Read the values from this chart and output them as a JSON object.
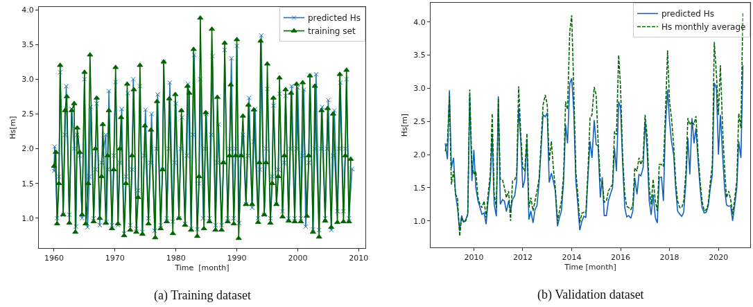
{
  "chart_data": [
    {
      "type": "line",
      "xlabel": "Time  [month]",
      "ylabel": "Hs[m]",
      "annotations": [
        "(a) Training dataset"
      ],
      "xlim": [
        1957.5,
        2011.1
      ],
      "xticks": [
        1960,
        1970,
        1980,
        1990,
        2000,
        2010
      ],
      "ylim": [
        0.57,
        4.04
      ],
      "yticks": [
        {
          "value": 1,
          "label": "1.0"
        },
        1.5,
        {
          "value": 2,
          "label": "2.0"
        },
        2.5,
        {
          "value": 3,
          "label": "3.0"
        },
        3.5,
        {
          "value": 4,
          "label": "4.0"
        }
      ],
      "grid": false,
      "legend": "top right",
      "series": [
        {
          "name": "predicted Hs",
          "color": "#1f77b4",
          "marker": "cross",
          "x": [
            1960.0,
            1960.1,
            1960.5,
            1960.8,
            1961.0,
            1961.5,
            1961.8,
            1962.0,
            1962.5,
            1962.9,
            1963.3,
            1963.6,
            1963.8,
            1964.2,
            1964.6,
            1965.0,
            1965.5,
            1965.8,
            1966.0,
            1966.5,
            1966.8,
            1967.0,
            1967.5,
            1967.8,
            1968.5,
            1968.6,
            1968.8,
            1969.0,
            1969.5,
            1969.8,
            1970.1,
            1970.5,
            1970.8,
            1971.1,
            1971.5,
            1971.8,
            1972.1,
            1972.5,
            1972.8,
            1973.0,
            1973.5,
            1973.8,
            1974.1,
            1974.5,
            1974.8,
            1975.0,
            1975.5,
            1975.8,
            1976.0,
            1976.5,
            1976.8,
            1977.0,
            1977.5,
            1977.8,
            1978.0,
            1978.5,
            1978.8,
            1979.0,
            1979.5,
            1979.8,
            1980.0,
            1980.5,
            1980.8,
            1981.0,
            1981.5,
            1981.8,
            1982.0,
            1982.5,
            1982.8,
            1983.0,
            1983.5,
            1983.8,
            1984.0,
            1984.5,
            1984.8,
            1985.0,
            1985.5,
            1985.8,
            1986.0,
            1986.5,
            1986.8,
            1987.0,
            1987.5,
            1987.8,
            1988.0,
            1988.5,
            1988.8,
            1989.1,
            1989.5,
            1989.8,
            1990.0,
            1990.4,
            1990.7,
            1991.0,
            1991.5,
            1991.8,
            1992.0,
            1992.5,
            1992.8,
            1993.0,
            1993.5,
            1993.8,
            1994.0,
            1994.5,
            1994.8,
            1995.0,
            1995.5,
            1995.8,
            1996.0,
            1996.5,
            1996.8,
            1997.0,
            1997.5,
            1997.8,
            1998.0,
            1998.5,
            1998.8,
            1999.0,
            1999.5,
            1999.8,
            2000.0,
            2000.5,
            2000.8,
            2001.0,
            2001.3,
            2001.8,
            2002.0,
            2002.5,
            2002.8,
            2003.0,
            2003.5,
            2003.8,
            2004.0,
            2004.5,
            2004.8,
            2005.0,
            2005.5,
            2005.8,
            2006.0,
            2006.5,
            2006.8,
            2007.0,
            2007.5,
            2007.8,
            2008.0,
            2008.4,
            2008.9
          ],
          "values": [
            1.68,
            2.03,
            1.0,
            1.6,
            3.1,
            1.05,
            2.2,
            2.9,
            1.05,
            2.57,
            2.0,
            0.88,
            2.2,
            1.9,
            1.0,
            3.0,
            0.87,
            1.6,
            2.6,
            1.0,
            1.7,
            2.65,
            0.9,
            1.8,
            2.2,
            0.95,
            1.7,
            2.83,
            0.9,
            1.9,
            2.96,
            0.9,
            1.8,
            2.57,
            0.78,
            1.6,
            2.8,
            0.9,
            1.7,
            3.0,
            0.85,
            1.4,
            2.9,
            0.8,
            1.9,
            2.56,
            1.0,
            1.8,
            2.5,
            0.82,
            2.0,
            2.78,
            0.9,
            1.7,
            3.25,
            1.0,
            2.0,
            2.95,
            0.95,
            1.8,
            2.65,
            1.0,
            2.0,
            2.45,
            0.92,
            1.9,
            2.93,
            0.85,
            2.2,
            3.35,
            0.84,
            1.5,
            3.0,
            1.0,
            2.0,
            2.5,
            1.0,
            2.2,
            3.33,
            0.9,
            1.8,
            2.35,
            0.9,
            1.8,
            3.42,
            1.0,
            2.0,
            3.3,
            1.0,
            2.0,
            3.48,
            0.93,
            1.9,
            2.2,
            1.2,
            1.9,
            2.73,
            1.15,
            2.1,
            2.57,
            1.0,
            1.7,
            3.63,
            1.05,
            2.0,
            2.86,
            1.0,
            1.6,
            2.62,
            1.2,
            1.7,
            2.79,
            1.1,
            1.8,
            2.76,
            1.0,
            2.0,
            2.9,
            1.0,
            2.0,
            2.88,
            1.0,
            1.9,
            2.85,
            0.88,
            1.8,
            3.05,
            0.84,
            2.0,
            3.07,
            0.83,
            2.0,
            2.6,
            1.0,
            2.0,
            2.7,
            0.83,
            1.9,
            2.55,
            1.1,
            2.0,
            2.95,
            1.1,
            2.0,
            3.0,
            1.0,
            1.71
          ]
        },
        {
          "name": "training set",
          "color": "#006400",
          "marker": "triangle",
          "x": [
            1960.0,
            1960.3,
            1960.5,
            1960.8,
            1961.0,
            1961.5,
            1961.8,
            1962.1,
            1962.5,
            1962.9,
            1963.3,
            1963.5,
            1963.8,
            1964.2,
            1964.6,
            1965.0,
            1965.2,
            1965.6,
            1965.9,
            1966.5,
            1966.8,
            1967.0,
            1967.5,
            1967.8,
            1968.0,
            1968.5,
            1968.8,
            1969.0,
            1969.5,
            1969.8,
            1970.1,
            1970.5,
            1970.8,
            1971.0,
            1971.5,
            1971.8,
            1972.0,
            1972.5,
            1972.8,
            1973.1,
            1973.5,
            1973.8,
            1974.1,
            1974.5,
            1974.9,
            1975.5,
            1975.9,
            1976.6,
            1976.9,
            1977.5,
            1977.8,
            1978.0,
            1978.5,
            1978.9,
            1979.5,
            1979.9,
            1980.5,
            1980.9,
            1981.5,
            1981.9,
            1982.2,
            1982.5,
            1982.9,
            1983.5,
            1983.8,
            1984.0,
            1984.6,
            1984.9,
            1985.5,
            1985.9,
            1986.5,
            1986.8,
            1987.5,
            1987.8,
            1988.0,
            1988.5,
            1988.8,
            1989.0,
            1989.5,
            1989.8,
            1990.0,
            1990.3,
            1990.7,
            1991.0,
            1991.5,
            1991.9,
            1992.5,
            1992.8,
            1993.5,
            1993.7,
            1993.9,
            1994.5,
            1994.8,
            1995.0,
            1995.5,
            1995.8,
            1996.0,
            1996.5,
            1996.8,
            1997.0,
            1997.5,
            1997.8,
            1998.0,
            1998.5,
            1998.9,
            1999.5,
            1999.8,
            2000.5,
            2000.8,
            2001.5,
            2001.8,
            2002.0,
            2002.5,
            2002.8,
            2003.5,
            2003.9,
            2004.5,
            2004.9,
            2005.5,
            2005.8,
            2006.5,
            2006.9,
            2007.5,
            2007.8,
            2008.0,
            2008.4,
            2008.7
          ],
          "values": [
            1.75,
            1.95,
            0.92,
            1.5,
            3.2,
            1.05,
            2.55,
            2.75,
            0.93,
            2.55,
            2.65,
            0.8,
            2.3,
            1.95,
            1.05,
            3.1,
            0.92,
            1.5,
            3.35,
            0.95,
            2.0,
            2.73,
            1.0,
            1.6,
            2.35,
            0.93,
            1.9,
            2.55,
            0.85,
            1.7,
            3.17,
            0.92,
            2.0,
            2.45,
            0.75,
            1.5,
            2.93,
            0.83,
            1.9,
            2.85,
            0.8,
            1.3,
            3.2,
            0.77,
            2.33,
            0.92,
            2.27,
            0.72,
            2.68,
            0.85,
            1.7,
            3.25,
            0.95,
            2.72,
            0.78,
            2.78,
            1.0,
            2.55,
            0.9,
            2.9,
            2.8,
            0.83,
            3.43,
            0.74,
            1.6,
            3.88,
            0.85,
            2.52,
            0.95,
            3.72,
            0.83,
            2.74,
            0.83,
            1.8,
            3.52,
            0.95,
            1.9,
            2.92,
            0.92,
            1.9,
            3.57,
            0.71,
            1.9,
            2.47,
            1.2,
            2.63,
            1.2,
            2.56,
            0.94,
            1.8,
            3.55,
            1.05,
            1.8,
            3.22,
            0.93,
            1.5,
            2.73,
            1.2,
            1.6,
            3.02,
            1.02,
            1.9,
            2.85,
            0.96,
            2.8,
            0.95,
            2.93,
            0.95,
            2.95,
            1.03,
            1.9,
            3.05,
            0.8,
            2.9,
            0.73,
            2.55,
            0.96,
            2.58,
            0.87,
            2.5,
            0.94,
            3.07,
            0.95,
            1.9,
            3.13,
            0.95,
            1.85
          ]
        }
      ]
    },
    {
      "type": "line",
      "xlabel": "Time [month]",
      "ylabel": "Hs[m]",
      "annotations": [
        "(b) Validation dataset"
      ],
      "xlim": [
        2008.23,
        2021.3
      ],
      "xticks": [
        2010,
        2012,
        2014,
        2016,
        2018,
        2020
      ],
      "ylim": [
        0.6,
        4.29
      ],
      "yticks": [
        {
          "value": 1,
          "label": "1.0"
        },
        1.5,
        {
          "value": 2,
          "label": "2.0"
        },
        2.5,
        {
          "value": 3,
          "label": "3.0"
        },
        3.5,
        {
          "value": 4,
          "label": "4.0"
        }
      ],
      "grid": false,
      "legend": "top right",
      "series": [
        {
          "name": "predicted Hs",
          "color": "#1060c0",
          "line_style": "solid",
          "x": [
            2008.83,
            2008.92,
            2009.0,
            2009.08,
            2009.17,
            2009.25,
            2009.33,
            2009.42,
            2009.5,
            2009.58,
            2009.67,
            2009.75,
            2009.83,
            2009.92,
            2010.0,
            2010.08,
            2010.17,
            2010.25,
            2010.33,
            2010.42,
            2010.5,
            2010.58,
            2010.67,
            2010.75,
            2010.83,
            2010.92,
            2011.0,
            2011.08,
            2011.17,
            2011.25,
            2011.33,
            2011.42,
            2011.5,
            2011.58,
            2011.67,
            2011.75,
            2011.83,
            2011.92,
            2012.0,
            2012.08,
            2012.17,
            2012.25,
            2012.33,
            2012.42,
            2012.5,
            2012.58,
            2012.67,
            2012.75,
            2012.83,
            2012.92,
            2013.0,
            2013.08,
            2013.17,
            2013.25,
            2013.33,
            2013.42,
            2013.5,
            2013.58,
            2013.67,
            2013.75,
            2013.83,
            2013.92,
            2014.0,
            2014.08,
            2014.17,
            2014.25,
            2014.33,
            2014.42,
            2014.5,
            2014.58,
            2014.67,
            2014.75,
            2014.83,
            2014.92,
            2015.0,
            2015.08,
            2015.17,
            2015.25,
            2015.33,
            2015.42,
            2015.5,
            2015.58,
            2015.67,
            2015.75,
            2015.83,
            2015.92,
            2016.0,
            2016.08,
            2016.17,
            2016.25,
            2016.33,
            2016.42,
            2016.5,
            2016.58,
            2016.67,
            2016.75,
            2016.83,
            2016.92,
            2017.0,
            2017.08,
            2017.17,
            2017.25,
            2017.33,
            2017.42,
            2017.5,
            2017.58,
            2017.67,
            2017.75,
            2017.83,
            2017.92,
            2018.0,
            2018.08,
            2018.17,
            2018.25,
            2018.33,
            2018.42,
            2018.5,
            2018.58,
            2018.67,
            2018.75,
            2018.83,
            2018.92,
            2019.0,
            2019.08,
            2019.17,
            2019.25,
            2019.33,
            2019.42,
            2019.5,
            2019.58,
            2019.67,
            2019.75,
            2019.83,
            2019.92,
            2020.0,
            2020.08,
            2020.17,
            2020.25,
            2020.33,
            2020.42,
            2020.5,
            2020.58,
            2020.67,
            2020.75,
            2020.83,
            2020.92,
            2021.0
          ],
          "values": [
            2.17,
            1.93,
            2.97,
            1.8,
            1.95,
            1.4,
            1.2,
            0.85,
            1.08,
            0.98,
            1.02,
            1.1,
            2.9,
            1.6,
            2.07,
            1.5,
            1.3,
            1.2,
            1.1,
            1.12,
            0.95,
            1.3,
            1.6,
            2.3,
            1.25,
            1.07,
            2.88,
            1.25,
            1.32,
            1.3,
            1.14,
            1.3,
            1.15,
            1.32,
            1.38,
            1.6,
            2.7,
            2.2,
            1.5,
            1.62,
            2.2,
            1.02,
            1.15,
            0.97,
            1.17,
            1.23,
            1.6,
            2.1,
            2.6,
            2.57,
            2.63,
            1.58,
            1.72,
            1.6,
            1.45,
            0.92,
            1.05,
            1.15,
            1.6,
            2.45,
            2.17,
            3.07,
            3.15,
            2.7,
            1.6,
            1.25,
            0.86,
            1.0,
            1.07,
            1.05,
            1.7,
            2.2,
            1.95,
            2.52,
            2.15,
            2.13,
            1.35,
            1.66,
            1.08,
            1.08,
            1.3,
            1.4,
            1.5,
            2.1,
            1.75,
            2.8,
            2.7,
            1.9,
            1.2,
            1.06,
            1.08,
            1.04,
            1.15,
            1.65,
            1.4,
            1.7,
            1.68,
            1.8,
            2.5,
            2.1,
            1.3,
            1.09,
            1.4,
            1.05,
            0.97,
            1.65,
            1.66,
            1.3,
            2.4,
            2.98,
            2.5,
            2.2,
            2.0,
            1.5,
            1.15,
            1.1,
            1.07,
            1.13,
            1.6,
            2.25,
            1.7,
            2.55,
            2.17,
            2.4,
            1.9,
            1.5,
            1.2,
            1.12,
            1.13,
            1.22,
            1.5,
            1.7,
            3.08,
            3.0,
            2.0,
            2.6,
            2.0,
            1.5,
            1.24,
            1.22,
            1.23,
            1.0,
            1.25,
            1.5,
            2.2,
            1.95,
            3.35
          ]
        },
        {
          "name": "Hs monthly average",
          "color": "#006400",
          "line_style": "dashed",
          "x": [
            2008.83,
            2008.92,
            2009.0,
            2009.08,
            2009.17,
            2009.25,
            2009.33,
            2009.42,
            2009.5,
            2009.58,
            2009.67,
            2009.75,
            2009.83,
            2009.92,
            2010.0,
            2010.08,
            2010.17,
            2010.25,
            2010.33,
            2010.42,
            2010.5,
            2010.58,
            2010.67,
            2010.75,
            2010.83,
            2010.92,
            2011.0,
            2011.08,
            2011.17,
            2011.25,
            2011.33,
            2011.42,
            2011.5,
            2011.58,
            2011.67,
            2011.75,
            2011.83,
            2011.92,
            2012.0,
            2012.08,
            2012.17,
            2012.25,
            2012.33,
            2012.42,
            2012.5,
            2012.58,
            2012.67,
            2012.75,
            2012.83,
            2012.92,
            2013.0,
            2013.08,
            2013.17,
            2013.25,
            2013.33,
            2013.42,
            2013.5,
            2013.58,
            2013.67,
            2013.75,
            2013.83,
            2013.92,
            2014.0,
            2014.08,
            2014.17,
            2014.25,
            2014.33,
            2014.42,
            2014.5,
            2014.58,
            2014.67,
            2014.75,
            2014.83,
            2014.92,
            2015.0,
            2015.08,
            2015.17,
            2015.25,
            2015.33,
            2015.42,
            2015.5,
            2015.58,
            2015.67,
            2015.75,
            2015.83,
            2015.92,
            2016.0,
            2016.08,
            2016.17,
            2016.25,
            2016.33,
            2016.42,
            2016.5,
            2016.58,
            2016.67,
            2016.75,
            2016.83,
            2016.92,
            2017.0,
            2017.08,
            2017.17,
            2017.25,
            2017.33,
            2017.42,
            2017.5,
            2017.58,
            2017.67,
            2017.75,
            2017.83,
            2017.92,
            2018.0,
            2018.08,
            2018.17,
            2018.25,
            2018.33,
            2018.42,
            2018.5,
            2018.58,
            2018.67,
            2018.75,
            2018.83,
            2018.92,
            2019.0,
            2019.08,
            2019.17,
            2019.25,
            2019.33,
            2019.42,
            2019.5,
            2019.58,
            2019.67,
            2019.75,
            2019.83,
            2019.92,
            2020.0,
            2020.08,
            2020.17,
            2020.25,
            2020.33,
            2020.42,
            2020.5,
            2020.58,
            2020.67,
            2020.75,
            2020.83,
            2020.92,
            2021.0
          ],
          "values": [
            2.05,
            2.2,
            2.88,
            1.55,
            1.75,
            1.4,
            1.35,
            0.77,
            1.05,
            0.98,
            1.0,
            1.1,
            2.98,
            1.85,
            1.7,
            1.75,
            1.35,
            1.25,
            1.2,
            1.3,
            1.05,
            1.4,
            1.7,
            2.62,
            1.4,
            1.2,
            2.85,
            1.63,
            1.62,
            1.5,
            1.35,
            1.45,
            1.0,
            1.6,
            1.62,
            1.7,
            3.03,
            2.3,
            1.8,
            1.75,
            2.32,
            1.2,
            1.35,
            1.15,
            1.3,
            1.45,
            1.65,
            2.2,
            2.75,
            2.9,
            2.75,
            1.9,
            2.2,
            1.8,
            1.5,
            1.0,
            1.15,
            1.3,
            1.7,
            2.8,
            2.68,
            3.85,
            4.1,
            3.05,
            1.75,
            1.4,
            0.97,
            1.12,
            1.13,
            1.12,
            1.8,
            2.55,
            2.6,
            3.02,
            2.9,
            2.2,
            1.6,
            1.6,
            1.28,
            1.3,
            1.45,
            1.5,
            1.55,
            2.35,
            2.3,
            3.5,
            3.0,
            2.0,
            1.4,
            1.22,
            1.2,
            1.17,
            1.25,
            1.8,
            1.75,
            1.95,
            1.85,
            1.95,
            2.6,
            2.3,
            1.5,
            1.25,
            1.63,
            1.3,
            1.15,
            1.85,
            1.85,
            1.82,
            2.6,
            3.57,
            2.8,
            2.55,
            2.15,
            1.6,
            1.3,
            1.2,
            1.2,
            1.3,
            1.75,
            2.55,
            2.45,
            2.5,
            2.45,
            2.58,
            2.0,
            1.6,
            1.3,
            1.15,
            1.17,
            1.25,
            1.6,
            1.85,
            3.7,
            3.2,
            2.6,
            3.35,
            2.4,
            1.8,
            1.35,
            1.45,
            1.32,
            1.1,
            1.35,
            1.6,
            2.62,
            2.4,
            4.15
          ]
        }
      ]
    }
  ]
}
